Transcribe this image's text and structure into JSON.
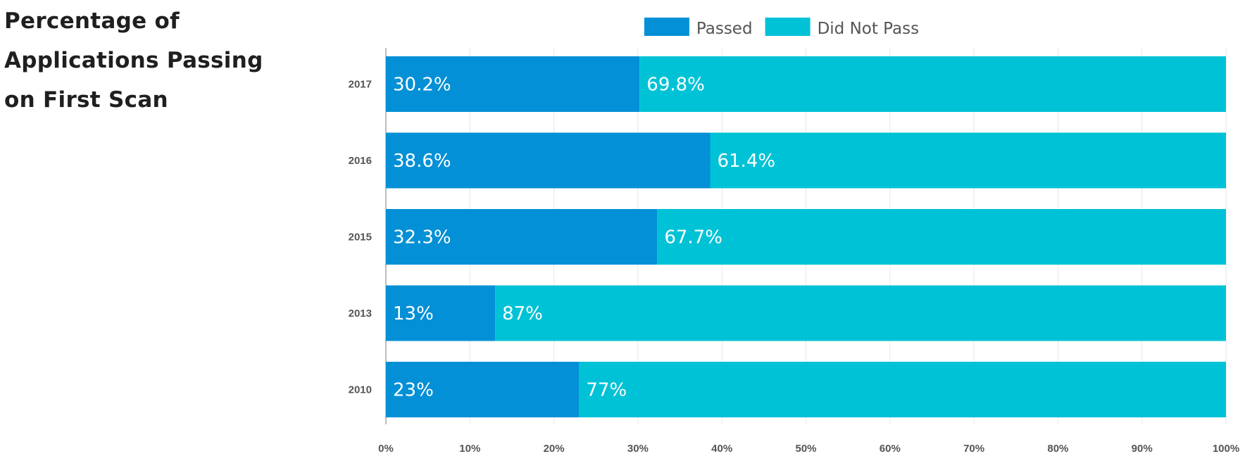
{
  "chart_data": {
    "type": "bar",
    "orientation": "horizontal",
    "stacked": true,
    "title": "Percentage of Applications Passing on First Scan",
    "categories": [
      "2017",
      "2016",
      "2015",
      "2013",
      "2010"
    ],
    "series": [
      {
        "name": "Passed",
        "color": "#0390d6",
        "values": [
          30.2,
          38.6,
          32.3,
          13,
          23
        ],
        "labels": [
          "30.2%",
          "38.6%",
          "32.3%",
          "13%",
          "23%"
        ]
      },
      {
        "name": "Did Not Pass",
        "color": "#00c2d6",
        "values": [
          69.8,
          61.4,
          67.7,
          87,
          77
        ],
        "labels": [
          "69.8%",
          "61.4%",
          "67.7%",
          "87%",
          "77%"
        ]
      }
    ],
    "xlim": [
      0,
      100
    ],
    "xticks": [
      0,
      10,
      20,
      30,
      40,
      50,
      60,
      70,
      80,
      90,
      100
    ],
    "xtick_labels": [
      "0%",
      "10%",
      "20%",
      "30%",
      "40%",
      "50%",
      "60%",
      "70%",
      "80%",
      "90%",
      "100%"
    ],
    "xlabel": "",
    "ylabel": "",
    "grid": true,
    "legend_position": "top"
  }
}
